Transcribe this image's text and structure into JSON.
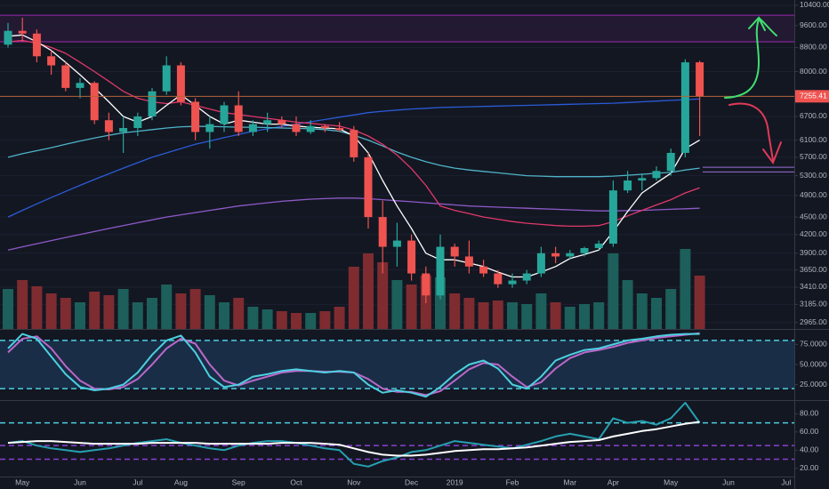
{
  "chart_data": [
    {
      "type": "candlestick",
      "categories": [
        null,
        "May",
        null,
        null,
        null,
        "Jun",
        null,
        null,
        null,
        "Jul",
        null,
        null,
        "Aug",
        null,
        null,
        null,
        "Sep",
        null,
        null,
        null,
        "Oct",
        null,
        null,
        null,
        "Nov",
        null,
        null,
        null,
        "Dec",
        null,
        null,
        "2019",
        null,
        null,
        null,
        "Feb",
        null,
        null,
        null,
        "Mar",
        null,
        null,
        "Apr",
        null,
        null,
        null,
        "May",
        null,
        null,
        null,
        "Jun",
        null,
        null,
        null,
        "Jul"
      ],
      "open": [
        8900,
        9400,
        9300,
        8500,
        8200,
        7500,
        7650,
        6600,
        6300,
        6400,
        6700,
        7400,
        8200,
        7100,
        6300,
        6500,
        7000,
        6300,
        6500,
        6600,
        6500,
        6300,
        6450,
        6400,
        6350,
        5700,
        4500,
        4000,
        4100,
        3600,
        3300,
        4000,
        3850,
        3700,
        3600,
        3450,
        3500,
        3600,
        3900,
        3850,
        3900,
        3980,
        4050,
        5000,
        5200,
        5250,
        5400,
        5800,
        8300,
        null,
        null,
        null,
        null,
        null,
        null
      ],
      "high": [
        9700,
        9900,
        9450,
        8700,
        8300,
        7800,
        7700,
        6800,
        6700,
        6800,
        7500,
        8500,
        8300,
        7200,
        6700,
        7100,
        7400,
        6600,
        6800,
        6700,
        6700,
        6600,
        6500,
        6550,
        6450,
        5800,
        4800,
        4400,
        4200,
        3700,
        4200,
        4050,
        4100,
        3800,
        3650,
        3600,
        3650,
        4000,
        4000,
        3950,
        4000,
        4100,
        5200,
        5400,
        5350,
        5500,
        5900,
        8400,
        8350,
        null,
        null,
        null,
        null,
        null,
        null
      ],
      "low": [
        8800,
        9000,
        8300,
        7900,
        7400,
        7200,
        6500,
        6100,
        5800,
        6200,
        6600,
        7300,
        7000,
        6100,
        5900,
        6300,
        6200,
        6200,
        6300,
        6400,
        6200,
        6250,
        6300,
        6300,
        5600,
        4300,
        3600,
        3700,
        3500,
        3200,
        3250,
        3700,
        3600,
        3550,
        3400,
        3400,
        3450,
        3550,
        3750,
        3800,
        3850,
        3950,
        4000,
        4950,
        5000,
        5200,
        5300,
        5700,
        6200,
        null,
        null,
        null,
        null,
        null,
        null
      ],
      "close": [
        9400,
        9300,
        8500,
        8200,
        7500,
        7650,
        6600,
        6300,
        6400,
        6700,
        7400,
        8200,
        7100,
        6300,
        6500,
        7000,
        6300,
        6500,
        6600,
        6500,
        6300,
        6450,
        6400,
        6350,
        5700,
        4500,
        4000,
        4100,
        3600,
        3300,
        4000,
        3850,
        3700,
        3600,
        3450,
        3500,
        3600,
        3900,
        3850,
        3900,
        3980,
        4050,
        5000,
        5200,
        5250,
        5400,
        5800,
        8300,
        7255.41,
        null,
        null,
        null,
        null,
        null,
        null
      ],
      "volume": [
        45,
        55,
        48,
        40,
        35,
        30,
        42,
        38,
        45,
        30,
        35,
        50,
        40,
        45,
        38,
        30,
        35,
        25,
        22,
        20,
        18,
        18,
        20,
        25,
        70,
        85,
        75,
        55,
        50,
        60,
        58,
        40,
        35,
        30,
        32,
        30,
        28,
        40,
        30,
        25,
        28,
        30,
        85,
        55,
        40,
        35,
        45,
        90,
        60,
        null,
        null,
        null,
        null,
        null,
        null
      ],
      "up_color": "#26a69a",
      "down_color": "#ef5350",
      "volume_up_color": "#1d5f5a",
      "volume_down_color": "#7e2c30",
      "overlays": [
        {
          "color": "#8e5ac8",
          "values": [
            3950,
            4000,
            4050,
            4100,
            4150,
            4200,
            4250,
            4300,
            4350,
            4400,
            4450,
            4500,
            4540,
            4580,
            4620,
            4660,
            4700,
            4730,
            4760,
            4790,
            4810,
            4830,
            4840,
            4850,
            4850,
            4840,
            4820,
            4800,
            4780,
            4760,
            4740,
            4720,
            4700,
            4690,
            4680,
            4670,
            4660,
            4650,
            4640,
            4630,
            4620,
            4610,
            4610,
            4615,
            4620,
            4630,
            4640,
            4650,
            4660,
            null,
            null,
            null,
            null,
            null,
            null
          ]
        },
        {
          "color": "#2a5bd7",
          "values": [
            4500,
            4620,
            4740,
            4860,
            4980,
            5100,
            5220,
            5340,
            5460,
            5580,
            5700,
            5800,
            5900,
            6000,
            6080,
            6160,
            6240,
            6320,
            6380,
            6440,
            6500,
            6560,
            6620,
            6680,
            6740,
            6800,
            6840,
            6870,
            6900,
            6920,
            6940,
            6950,
            6960,
            6970,
            6980,
            6990,
            7000,
            7010,
            7020,
            7030,
            7040,
            7050,
            7060,
            7080,
            7100,
            7120,
            7140,
            7160,
            7180,
            null,
            null,
            null,
            null,
            null,
            null
          ]
        },
        {
          "color": "#4fb3c8",
          "values": [
            5700,
            5780,
            5850,
            5920,
            6000,
            6080,
            6150,
            6220,
            6280,
            6320,
            6360,
            6400,
            6430,
            6440,
            6440,
            6430,
            6420,
            6420,
            6410,
            6400,
            6390,
            6380,
            6360,
            6320,
            6220,
            6100,
            5960,
            5820,
            5700,
            5600,
            5520,
            5460,
            5420,
            5390,
            5360,
            5330,
            5300,
            5290,
            5280,
            5280,
            5280,
            5280,
            5290,
            5310,
            5330,
            5350,
            5370,
            5420,
            5460,
            null,
            null,
            null,
            null,
            null,
            null
          ]
        },
        {
          "color": "#e0386a",
          "values": [
            9000,
            9050,
            8950,
            8800,
            8600,
            8300,
            8000,
            7700,
            7400,
            7200,
            7100,
            7050,
            7100,
            7000,
            6900,
            6800,
            6750,
            6700,
            6650,
            6600,
            6550,
            6520,
            6480,
            6450,
            6350,
            6200,
            6000,
            5750,
            5450,
            5100,
            4700,
            4620,
            4560,
            4500,
            4460,
            4420,
            4390,
            4370,
            4350,
            4340,
            4340,
            4350,
            4420,
            4520,
            4620,
            4720,
            4820,
            4950,
            5050,
            null,
            null,
            null,
            null,
            null,
            null
          ]
        },
        {
          "color": "#ffffff",
          "values": [
            9200,
            9250,
            9000,
            8700,
            8300,
            7900,
            7500,
            7100,
            6700,
            6550,
            6700,
            7000,
            7300,
            7000,
            6700,
            6500,
            6600,
            6550,
            6500,
            6500,
            6450,
            6420,
            6400,
            6380,
            6200,
            5800,
            5200,
            4700,
            4300,
            3900,
            3800,
            3800,
            3750,
            3700,
            3620,
            3550,
            3550,
            3620,
            3700,
            3820,
            3880,
            3950,
            4250,
            4600,
            4950,
            5150,
            5350,
            5900,
            6100,
            null,
            null,
            null,
            null,
            null,
            null
          ]
        }
      ],
      "log_scale": true,
      "ylim": [
        2890,
        10620
      ],
      "yticks": [
        {
          "value": 10400,
          "label": "10400.00"
        },
        {
          "value": 9600,
          "label": "9600.00"
        },
        {
          "value": 8800,
          "label": "8800.00"
        },
        {
          "value": 8000,
          "label": "8000.00"
        },
        {
          "value": 6700,
          "label": "6700.00"
        },
        {
          "value": 6100,
          "label": "6100.00"
        },
        {
          "value": 5700,
          "label": "5700.00"
        },
        {
          "value": 5300,
          "label": "5300.00"
        },
        {
          "value": 4900,
          "label": "4900.00"
        },
        {
          "value": 4500,
          "label": "4500.00"
        },
        {
          "value": 4200,
          "label": "4200.00"
        },
        {
          "value": 3900,
          "label": "3900.00"
        },
        {
          "value": 3650,
          "label": "3650.00"
        },
        {
          "value": 3410,
          "label": "3410.00"
        },
        {
          "value": 3185,
          "label": "3185.00"
        },
        {
          "value": 2965,
          "label": "2965.00"
        }
      ],
      "grid": true,
      "zone": {
        "range": [
          9000,
          10000
        ],
        "color": "#9c27b0"
      },
      "levels": [
        {
          "value": 5480,
          "color": "#9c6fd6"
        },
        {
          "value": 5380,
          "color": "#9c6fd6"
        }
      ],
      "price_line_color": "#b5653a"
    },
    {
      "type": "line",
      "series": [
        {
          "color": "#ba68c8",
          "values": [
            65,
            82,
            85,
            70,
            48,
            30,
            20,
            19,
            22,
            32,
            50,
            70,
            82,
            76,
            50,
            30,
            24,
            30,
            35,
            40,
            42,
            42,
            41,
            41,
            40,
            32,
            20,
            16,
            16,
            12,
            17,
            30,
            44,
            52,
            50,
            35,
            22,
            28,
            45,
            58,
            65,
            68,
            72,
            77,
            80,
            83,
            85,
            87,
            89,
            null,
            null,
            null,
            null,
            null,
            null
          ]
        },
        {
          "color": "#4dd0e1",
          "values": [
            70,
            88,
            82,
            60,
            38,
            22,
            18,
            20,
            25,
            40,
            62,
            80,
            86,
            65,
            35,
            22,
            25,
            35,
            38,
            42,
            44,
            42,
            40,
            42,
            40,
            25,
            15,
            18,
            15,
            10,
            22,
            38,
            50,
            55,
            45,
            25,
            20,
            35,
            55,
            62,
            68,
            70,
            75,
            80,
            82,
            85,
            87,
            88,
            88,
            null,
            null,
            null,
            null,
            null,
            null
          ]
        }
      ],
      "ylim": [
        8,
        92
      ],
      "yticks": [
        {
          "value": 75,
          "label": "75.0000"
        },
        {
          "value": 50,
          "label": "50.0000"
        },
        {
          "value": 25,
          "label": "25.0000"
        }
      ],
      "bands": [
        {
          "value": 80,
          "color": "#4dd0e1"
        },
        {
          "value": 20,
          "color": "#4dd0e1"
        }
      ],
      "band_fill": "#1b3350"
    },
    {
      "type": "line",
      "series": [
        {
          "color": "#26a0b0",
          "values": [
            48,
            50,
            45,
            42,
            40,
            38,
            40,
            42,
            45,
            48,
            50,
            52,
            48,
            45,
            42,
            40,
            45,
            48,
            50,
            50,
            48,
            45,
            42,
            40,
            25,
            22,
            28,
            32,
            38,
            40,
            45,
            50,
            48,
            46,
            44,
            42,
            46,
            50,
            55,
            58,
            55,
            52,
            75,
            70,
            72,
            68,
            75,
            92,
            70,
            null,
            null,
            null,
            null,
            null,
            null
          ]
        },
        {
          "color": "#ffffff",
          "values": [
            48,
            49,
            50,
            50,
            49,
            48,
            47,
            47,
            47,
            47,
            48,
            48,
            48,
            48,
            47,
            47,
            47,
            47,
            47,
            48,
            48,
            48,
            47,
            46,
            42,
            38,
            35,
            34,
            34,
            35,
            37,
            39,
            40,
            41,
            41,
            42,
            43,
            45,
            47,
            49,
            50,
            51,
            55,
            58,
            61,
            63,
            66,
            69,
            71,
            null,
            null,
            null,
            null,
            null,
            null
          ]
        }
      ],
      "ylim": [
        12,
        93
      ],
      "yticks": [
        {
          "value": 80,
          "label": "80.00"
        },
        {
          "value": 60,
          "label": "60.00"
        },
        {
          "value": 40,
          "label": "40.00"
        },
        {
          "value": 20,
          "label": "20.00"
        }
      ],
      "bands": [
        {
          "value": 70,
          "color": "#4dd0e1"
        },
        {
          "value": 45,
          "color": "#8a3fd1"
        },
        {
          "value": 30,
          "color": "#8a3fd1"
        }
      ]
    }
  ]
}
